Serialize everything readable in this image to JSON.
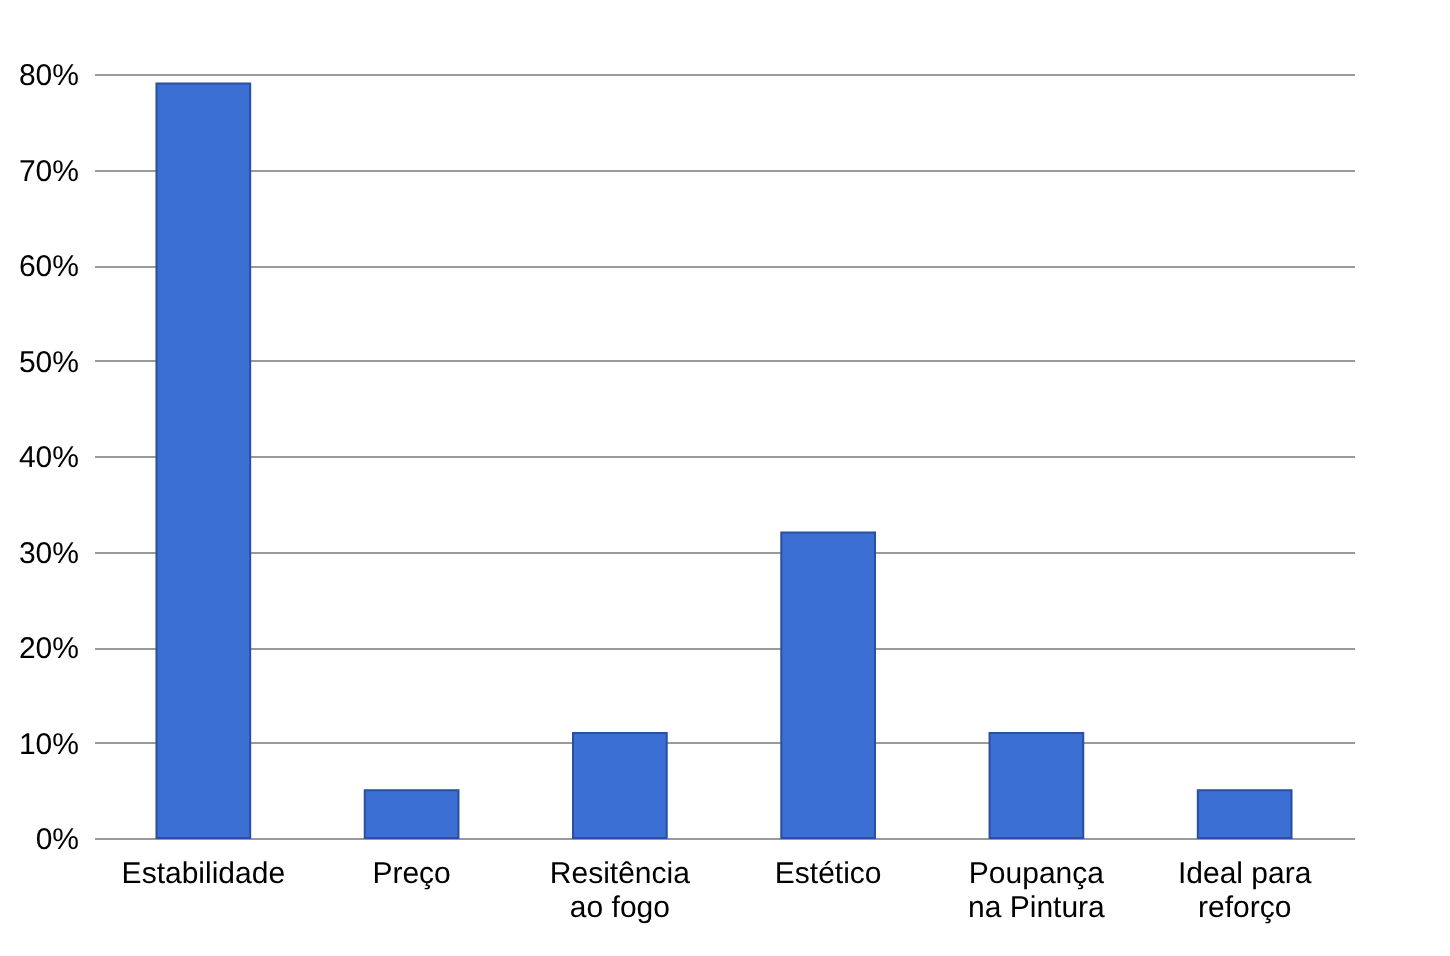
{
  "chart_data": {
    "type": "bar",
    "categories": [
      "Estabilidade",
      "Preço",
      "Resitência ao fogo",
      "Estético",
      "Poupança na Pintura",
      "Ideal para reforço"
    ],
    "values": [
      79,
      5,
      11,
      32,
      11,
      5
    ],
    "color": "#3c6fd4",
    "ylim": [
      0,
      80
    ],
    "yticks": [
      {
        "value": 0,
        "label": "0%"
      },
      {
        "value": 10,
        "label": "10%"
      },
      {
        "value": 20,
        "label": "20%"
      },
      {
        "value": 30,
        "label": "30%"
      },
      {
        "value": 40,
        "label": "40%"
      },
      {
        "value": 50,
        "label": "50%"
      },
      {
        "value": 60,
        "label": "60%"
      },
      {
        "value": 70,
        "label": "70%"
      },
      {
        "value": 80,
        "label": "80%"
      }
    ],
    "grid": "y"
  }
}
